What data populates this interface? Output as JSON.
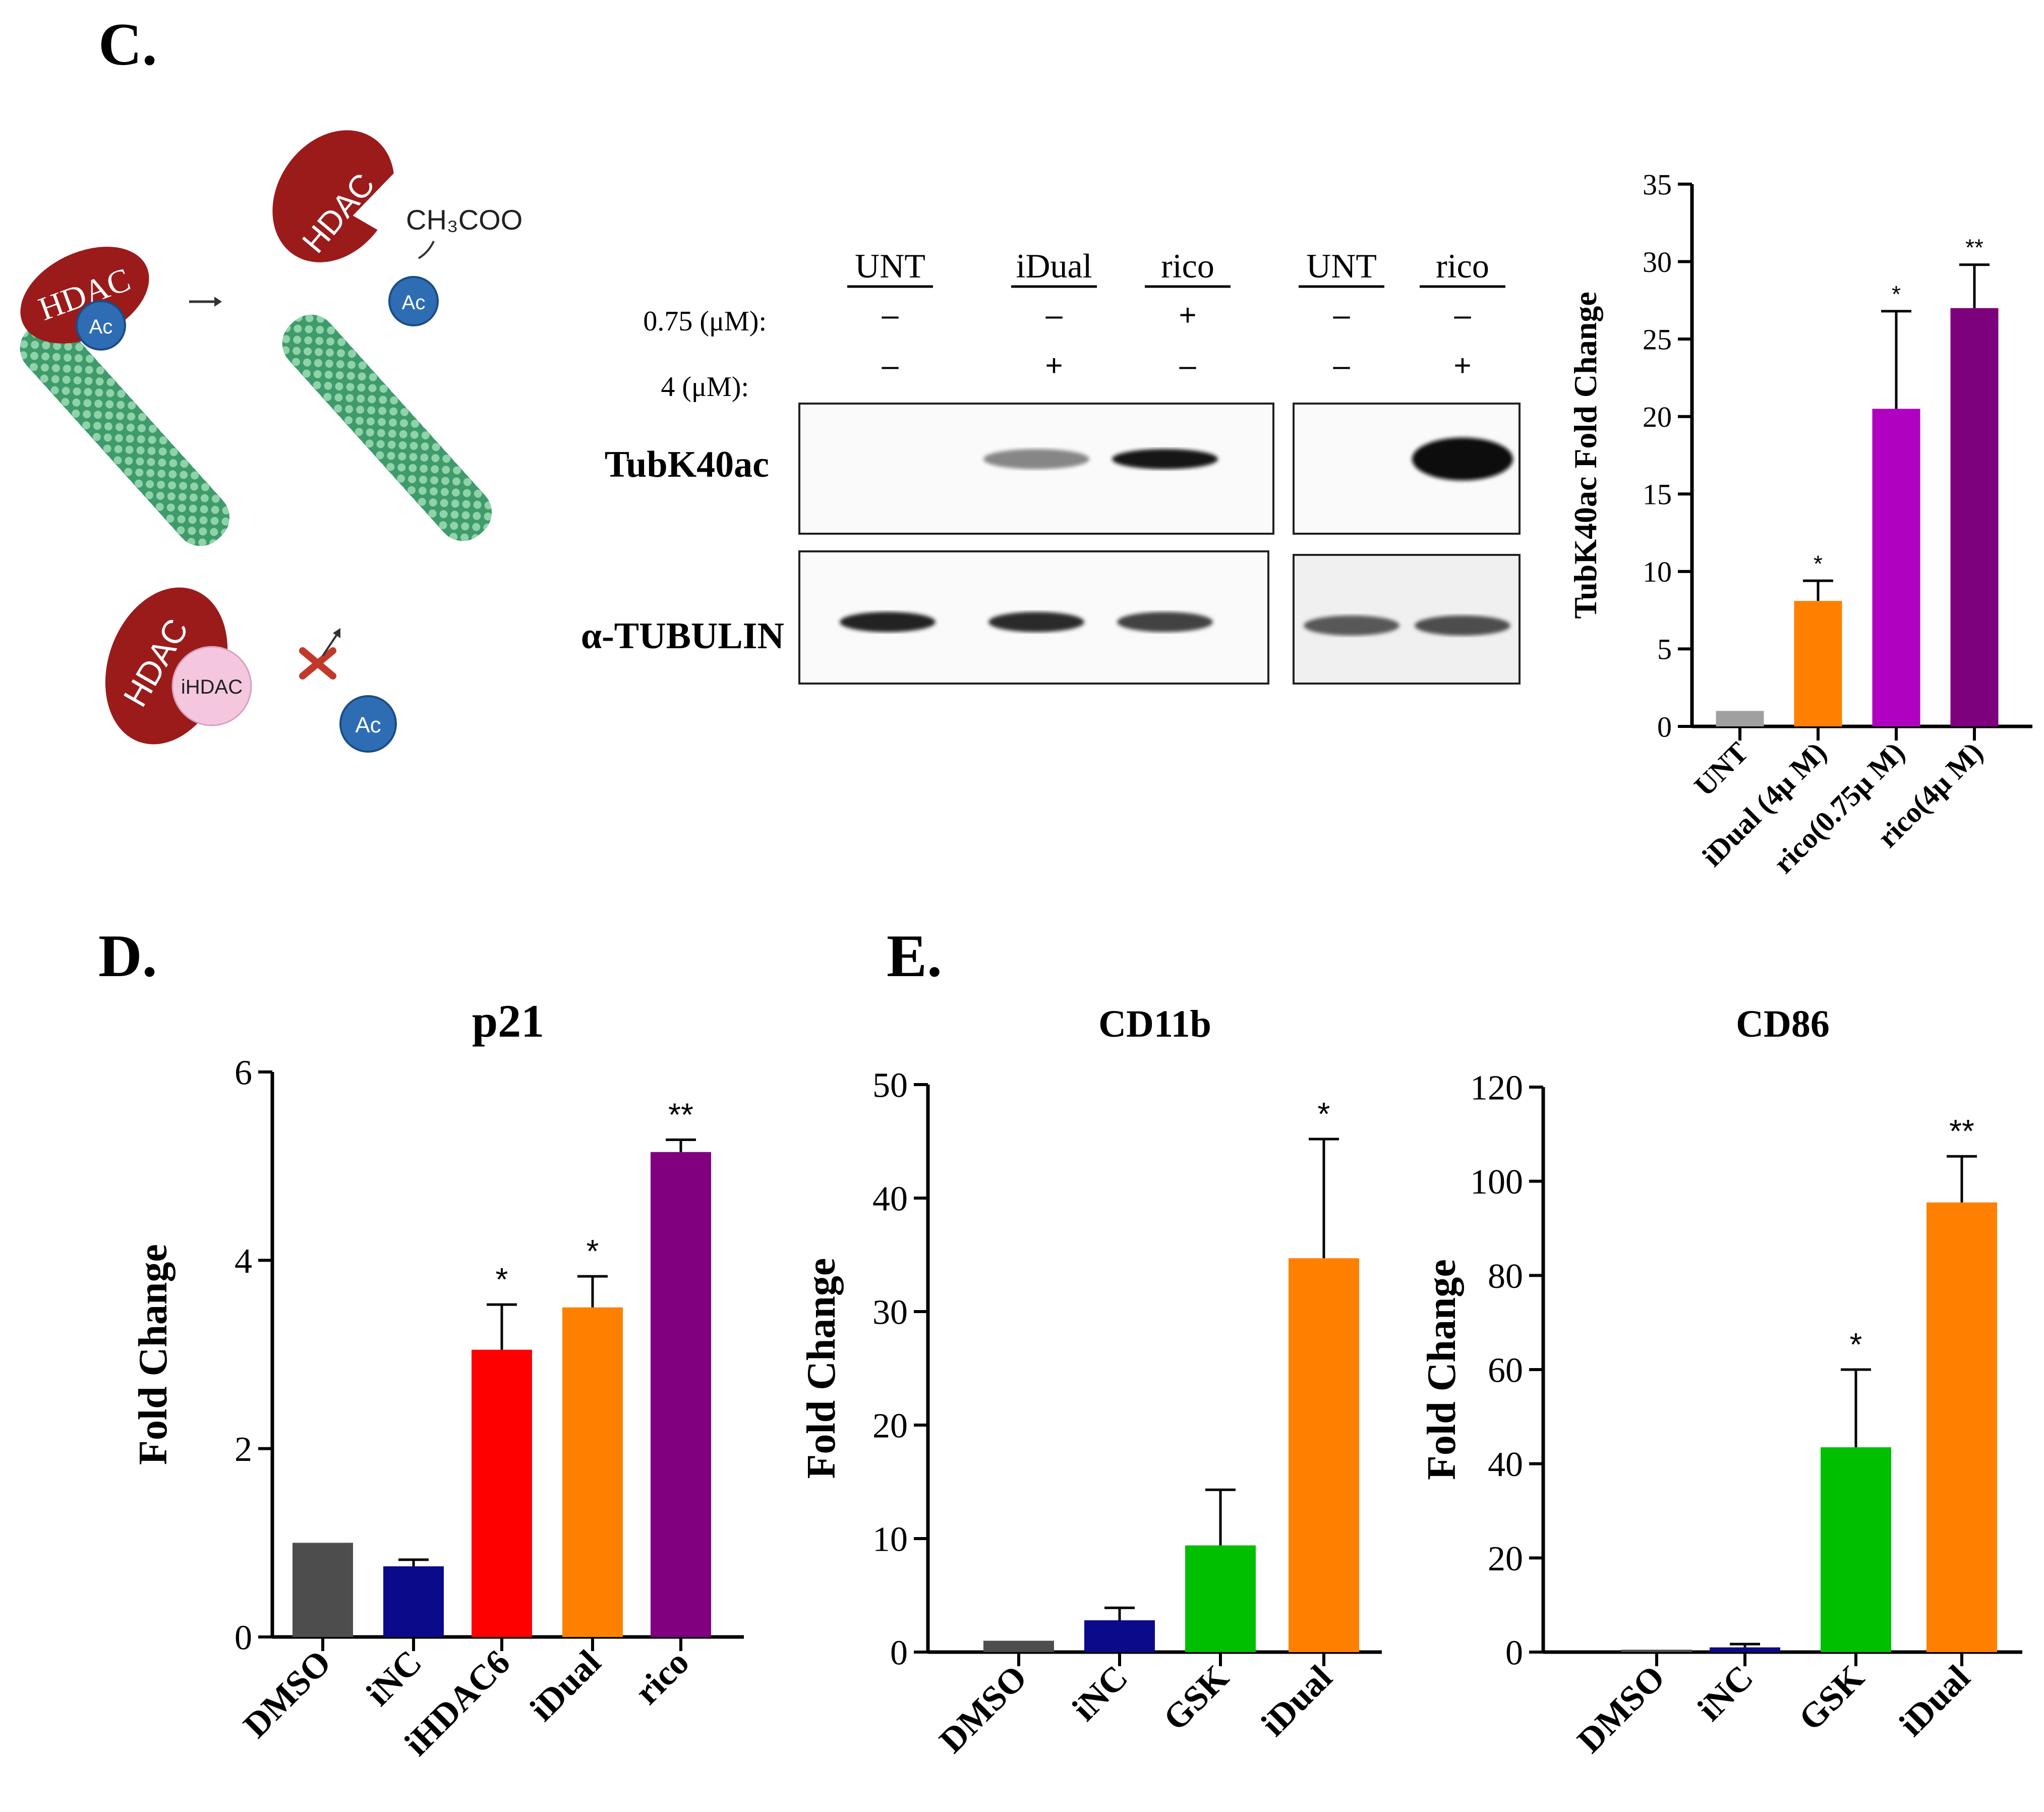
{
  "panels": {
    "c": "C.",
    "d": "D.",
    "e": "E."
  },
  "schematic": {
    "enzyme_label": "HDAC",
    "acetyl_label": "Ac",
    "product_label": "CH₃COO",
    "inhibitor_label": "iHDAC",
    "colors": {
      "enzyme": "#9b1b1b",
      "acetyl": "#2e6db4",
      "inhibitor": "#f4c7df",
      "microtubule": "#4fae7c",
      "block": "#c0392b"
    }
  },
  "blot": {
    "lane_headers": [
      "UNT",
      "iDual",
      "rico",
      "UNT",
      "rico"
    ],
    "conc_rows": [
      {
        "label": "0.75 (μM):",
        "marks": [
          "–",
          "–",
          "+",
          "–",
          "–"
        ]
      },
      {
        "label": "4 (μM):",
        "marks": [
          "–",
          "+",
          "–",
          "–",
          "+"
        ]
      }
    ],
    "rows": [
      {
        "label": "TubK40ac",
        "intensities": [
          0.02,
          0.45,
          0.95,
          0.01,
          1.0
        ]
      },
      {
        "label": "α-TUBULIN",
        "intensities": [
          0.9,
          0.85,
          0.75,
          0.65,
          0.7
        ]
      }
    ]
  },
  "chart_data": [
    {
      "id": "c",
      "type": "bar",
      "title": "",
      "ylabel": "TubK40ac Fold Change",
      "ylim": [
        0,
        35
      ],
      "yticks": [
        0,
        5,
        10,
        15,
        20,
        25,
        30,
        35
      ],
      "categories": [
        "UNT",
        "iDual (4μ M)",
        "rico(0.75μ M)",
        "rico(4μ M)"
      ],
      "values": [
        1.0,
        8.1,
        20.5,
        27.0
      ],
      "errors": [
        0,
        1.3,
        6.3,
        2.8
      ],
      "significance": [
        "",
        "*",
        "*",
        "**"
      ],
      "colors": [
        "#a0a0a0",
        "#ff8000",
        "#b000c0",
        "#7d007d"
      ]
    },
    {
      "id": "d",
      "type": "bar",
      "title": "p21",
      "ylabel": "Fold Change",
      "ylim": [
        0,
        6
      ],
      "yticks": [
        0,
        2,
        4,
        6
      ],
      "categories": [
        "DMSO",
        "iNC",
        "iHDAC6",
        "iDual",
        "rico"
      ],
      "values": [
        1.0,
        0.75,
        3.05,
        3.5,
        5.15
      ],
      "errors": [
        0,
        0.07,
        0.48,
        0.33,
        0.13
      ],
      "significance": [
        "",
        "",
        "*",
        "*",
        "**"
      ],
      "colors": [
        "#4d4d4d",
        "#0a0a8a",
        "#ff0000",
        "#ff8000",
        "#800080"
      ]
    },
    {
      "id": "e1",
      "type": "bar",
      "title": "CD11b",
      "ylabel": "Fold Change",
      "ylim": [
        0,
        50
      ],
      "yticks": [
        0,
        10,
        20,
        30,
        40,
        50
      ],
      "categories": [
        "DMSO",
        "iNC",
        "GSK",
        "iDual"
      ],
      "values": [
        1.0,
        2.8,
        9.4,
        34.7
      ],
      "errors": [
        0,
        1.1,
        4.9,
        10.5
      ],
      "significance": [
        "",
        "",
        "",
        "*"
      ],
      "colors": [
        "#4d4d4d",
        "#0a0a8a",
        "#00bf00",
        "#ff8000"
      ]
    },
    {
      "id": "e2",
      "type": "bar",
      "title": "CD86",
      "ylabel": "Fold Change",
      "ylim": [
        0,
        120
      ],
      "yticks": [
        0,
        20,
        40,
        60,
        80,
        100,
        120
      ],
      "categories": [
        "DMSO",
        "iNC",
        "GSK",
        "iDual"
      ],
      "values": [
        0.5,
        1.0,
        43.5,
        95.5
      ],
      "errors": [
        0,
        0.7,
        16.5,
        9.8
      ],
      "significance": [
        "",
        "",
        "*",
        "**"
      ],
      "colors": [
        "#4d4d4d",
        "#0a0a8a",
        "#00bf00",
        "#ff8000"
      ]
    }
  ]
}
